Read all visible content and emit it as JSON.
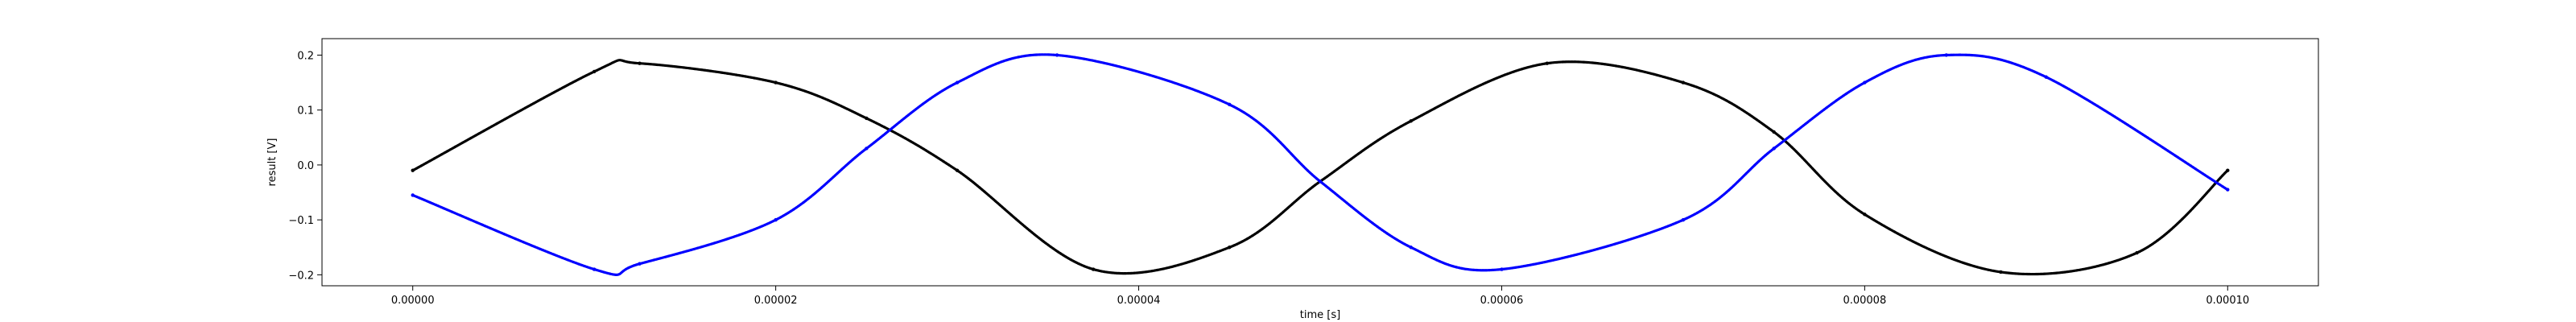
{
  "chart_data": {
    "type": "scatter",
    "title": "",
    "xlabel": "time [s]",
    "ylabel": "result [V]",
    "xlim": [
      -5e-06,
      0.000105
    ],
    "ylim": [
      -0.22,
      0.23
    ],
    "grid": false,
    "legend": "none",
    "x_ticks": [
      0.0,
      2e-05,
      4e-05,
      6e-05,
      8e-05,
      0.0001
    ],
    "x_tick_labels": [
      "0.00000",
      "0.00002",
      "0.00004",
      "0.00006",
      "0.00008",
      "0.00010"
    ],
    "y_ticks": [
      -0.2,
      -0.1,
      0.0,
      0.1,
      0.2
    ],
    "y_tick_labels": [
      "−0.2",
      "−0.1",
      "0.0",
      "0.1",
      "0.2"
    ],
    "series": [
      {
        "color": "#000000",
        "x": [
          0.0,
          1e-05,
          1.25e-05,
          2e-05,
          2.5e-05,
          3e-05,
          3.75e-05,
          4.5e-05,
          5e-05,
          5.5e-05,
          6.25e-05,
          7e-05,
          7.5e-05,
          8e-05,
          8.75e-05,
          9.5e-05,
          0.0001
        ],
        "y": [
          -0.01,
          0.17,
          0.185,
          0.15,
          0.085,
          -0.01,
          -0.19,
          -0.15,
          -0.03,
          0.08,
          0.185,
          0.15,
          0.06,
          -0.09,
          -0.195,
          -0.16,
          -0.01
        ]
      },
      {
        "color": "#0000ff",
        "x": [
          0.0,
          1e-05,
          1.25e-05,
          2e-05,
          2.5e-05,
          3e-05,
          3.55e-05,
          4.5e-05,
          5e-05,
          5.5e-05,
          6e-05,
          7e-05,
          7.5e-05,
          8e-05,
          8.45e-05,
          9e-05,
          0.0001
        ],
        "y": [
          -0.055,
          -0.19,
          -0.18,
          -0.1,
          0.03,
          0.15,
          0.2,
          0.11,
          -0.03,
          -0.15,
          -0.19,
          -0.1,
          0.03,
          0.15,
          0.2,
          0.16,
          -0.045
        ]
      }
    ]
  }
}
